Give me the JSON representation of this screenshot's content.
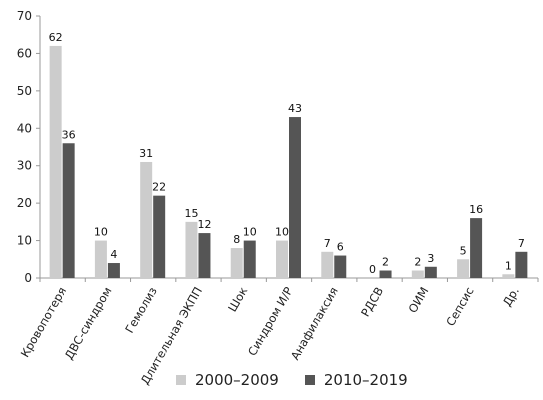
{
  "chart_data": {
    "type": "bar",
    "title": "",
    "xlabel": "",
    "ylabel": "",
    "ylim": [
      0,
      70
    ],
    "yticks": [
      0,
      10,
      20,
      30,
      40,
      50,
      60,
      70
    ],
    "grid": false,
    "legend_position": "bottom",
    "categories": [
      "Кровопотеря",
      "ДВС-синдром",
      "Гемолиз",
      "Длительная ЭКПП",
      "Шок",
      "Синдром И/Р",
      "Анафилаксия",
      "РДСВ",
      "ОИМ",
      "Сепсис",
      "Др."
    ],
    "series": [
      {
        "name": "2000–2009",
        "values": [
          62,
          10,
          31,
          15,
          8,
          10,
          7,
          0,
          2,
          5,
          1
        ],
        "color": "#cccccc"
      },
      {
        "name": "2010–2019",
        "values": [
          36,
          4,
          22,
          12,
          10,
          43,
          6,
          2,
          3,
          16,
          7
        ],
        "color": "#555555"
      }
    ]
  }
}
